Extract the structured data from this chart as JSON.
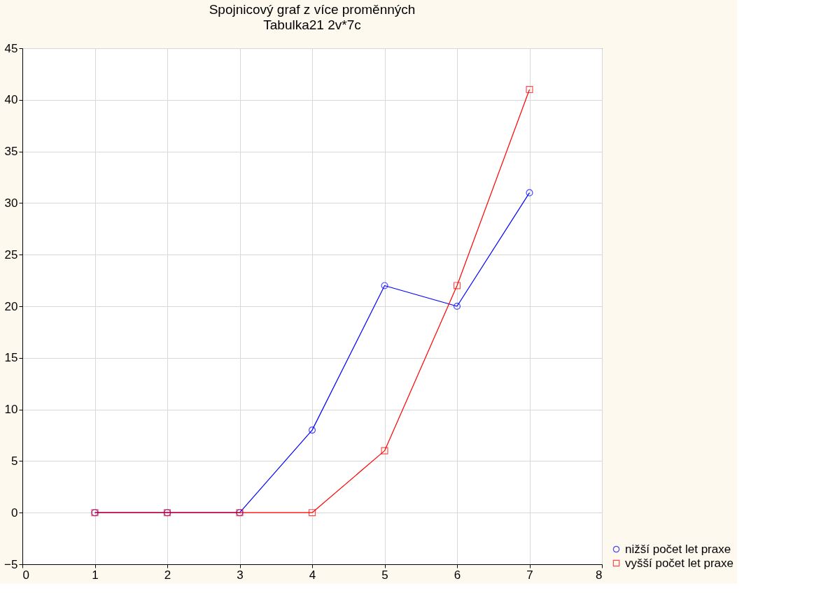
{
  "chart_data": {
    "type": "line",
    "title": "Spojnicový graf z více proměnných",
    "subtitle": "Tabulka21 2v*7c",
    "x": [
      1,
      2,
      3,
      4,
      5,
      6,
      7
    ],
    "series": [
      {
        "name": "nižší počet let praxe",
        "color": "#0000ff",
        "marker": "circle",
        "values": [
          0,
          0,
          0,
          8,
          22,
          20,
          31
        ]
      },
      {
        "name": "vyšší počet let praxe",
        "color": "#ff0000",
        "marker": "square",
        "values": [
          0,
          0,
          0,
          0,
          6,
          22,
          41
        ]
      }
    ],
    "xlim": [
      0,
      8
    ],
    "xticks": [
      0,
      1,
      2,
      3,
      4,
      5,
      6,
      7,
      8
    ],
    "ylim": [
      -5,
      45
    ],
    "yticks": [
      -5,
      0,
      5,
      10,
      15,
      20,
      25,
      30,
      35,
      40,
      45
    ],
    "grid": true,
    "legend": "bottom right",
    "line_style": "solid"
  }
}
